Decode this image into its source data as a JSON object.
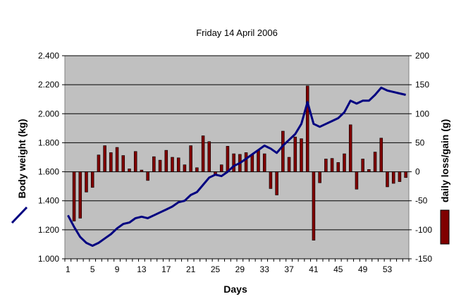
{
  "chart_data": {
    "type": "bar+line",
    "title": "Friday 14 April 2006",
    "xlabel": "Days",
    "x_tick_labels": [
      "1",
      "5",
      "9",
      "13",
      "17",
      "21",
      "25",
      "29",
      "33",
      "37",
      "41",
      "45",
      "49",
      "53"
    ],
    "y_left": {
      "label": "Body weight (kg)",
      "min": 1.0,
      "max": 2.4,
      "ticks": [
        "1.000",
        "1.200",
        "1.400",
        "1.600",
        "1.800",
        "2.000",
        "2.200",
        "2.400"
      ]
    },
    "y_right": {
      "label": "daily loss/gain (g)",
      "min": -150,
      "max": 200,
      "ticks": [
        "-150",
        "-100",
        "-50",
        "0",
        "50",
        "100",
        "150",
        "200"
      ]
    },
    "grid": true,
    "plot_background": "#c0c0c0",
    "line_color": "#000080",
    "bar_color": "#800000",
    "days": [
      1,
      2,
      3,
      4,
      5,
      6,
      7,
      8,
      9,
      10,
      11,
      12,
      13,
      14,
      15,
      16,
      17,
      18,
      19,
      20,
      21,
      22,
      23,
      24,
      25,
      26,
      27,
      28,
      29,
      30,
      31,
      32,
      33,
      34,
      35,
      36,
      37,
      38,
      39,
      40,
      41,
      42,
      43,
      44,
      45,
      46,
      47,
      48,
      49,
      50,
      51,
      52,
      53,
      54,
      55,
      56
    ],
    "series": [
      {
        "name": "Body weight (kg)",
        "type": "line",
        "axis": "left",
        "values": [
          1.3,
          1.22,
          1.15,
          1.11,
          1.09,
          1.11,
          1.14,
          1.17,
          1.21,
          1.24,
          1.25,
          1.28,
          1.29,
          1.28,
          1.3,
          1.32,
          1.34,
          1.36,
          1.39,
          1.4,
          1.44,
          1.46,
          1.51,
          1.56,
          1.58,
          1.57,
          1.6,
          1.64,
          1.66,
          1.69,
          1.72,
          1.75,
          1.78,
          1.76,
          1.73,
          1.78,
          1.82,
          1.86,
          1.93,
          2.08,
          1.93,
          1.91,
          1.93,
          1.95,
          1.97,
          2.01,
          2.09,
          2.07,
          2.09,
          2.09,
          2.13,
          2.18,
          2.16,
          2.15,
          2.14,
          2.13
        ]
      },
      {
        "name": "daily loss/gain (g)",
        "type": "bar",
        "axis": "right",
        "values": [
          0,
          -85,
          -80,
          -35,
          -27,
          29,
          45,
          33,
          42,
          28,
          5,
          35,
          3,
          -15,
          26,
          20,
          37,
          25,
          24,
          12,
          45,
          7,
          62,
          52,
          -5,
          12,
          44,
          31,
          30,
          33,
          30,
          37,
          31,
          -29,
          -40,
          70,
          25,
          60,
          57,
          148,
          -118,
          -19,
          22,
          23,
          16,
          31,
          81,
          -30,
          22,
          4,
          34,
          58,
          -26,
          -20,
          -17,
          -10
        ]
      }
    ]
  }
}
